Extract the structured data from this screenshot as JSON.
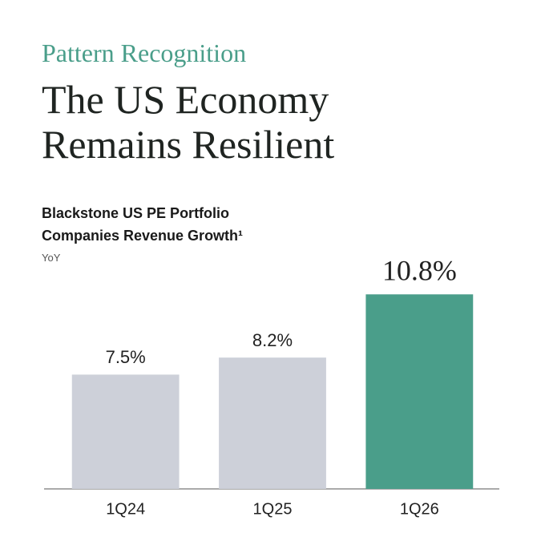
{
  "chart_data": {
    "type": "bar",
    "kicker": "Pattern Recognition",
    "title": "The US Economy Remains Resilient",
    "subtitle": "Blackstone US PE Portfolio Companies Revenue Growth¹",
    "y_label": "YoY",
    "categories": [
      "1Q24",
      "1Q25",
      "1Q26"
    ],
    "values": [
      7.5,
      8.2,
      10.8
    ],
    "value_labels": [
      "7.5%",
      "8.2%",
      "10.8%"
    ],
    "colors": [
      "#cdd0d9",
      "#cdd0d9",
      "#4a9e8a"
    ],
    "ylim": [
      2.8,
      11.6
    ]
  }
}
